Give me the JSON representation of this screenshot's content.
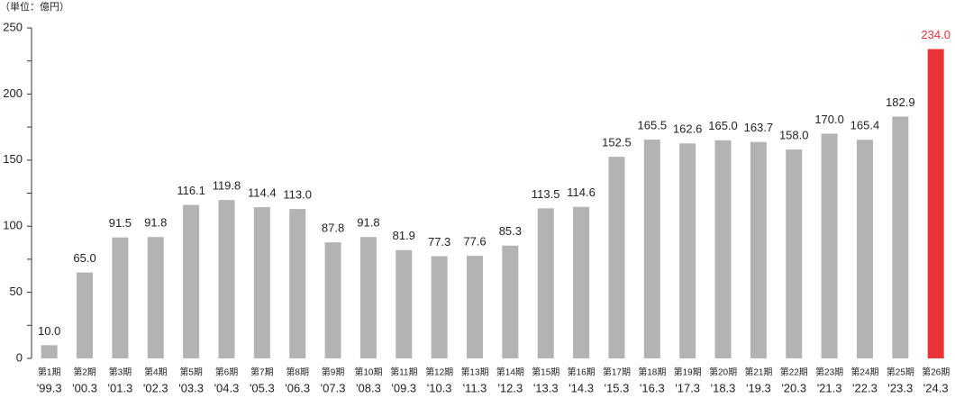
{
  "chart_data": {
    "type": "bar",
    "unit_label": "（単位：億円）",
    "categories": [
      [
        "第1期",
        "'99.3"
      ],
      [
        "第2期",
        "'00.3"
      ],
      [
        "第3期",
        "'01.3"
      ],
      [
        "第4期",
        "'02.3"
      ],
      [
        "第5期",
        "'03.3"
      ],
      [
        "第6期",
        "'04.3"
      ],
      [
        "第7期",
        "'05.3"
      ],
      [
        "第8期",
        "'06.3"
      ],
      [
        "第9期",
        "'07.3"
      ],
      [
        "第10期",
        "'08.3"
      ],
      [
        "第11期",
        "'09.3"
      ],
      [
        "第12期",
        "'10.3"
      ],
      [
        "第13期",
        "'11.3"
      ],
      [
        "第14期",
        "'12.3"
      ],
      [
        "第15期",
        "'13.3"
      ],
      [
        "第16期",
        "'14.3"
      ],
      [
        "第17期",
        "'15.3"
      ],
      [
        "第18期",
        "'16.3"
      ],
      [
        "第19期",
        "'17.3"
      ],
      [
        "第20期",
        "'18.3"
      ],
      [
        "第21期",
        "'19.3"
      ],
      [
        "第22期",
        "'20.3"
      ],
      [
        "第23期",
        "'21.3"
      ],
      [
        "第24期",
        "'22.3"
      ],
      [
        "第25期",
        "'23.3"
      ],
      [
        "第26期",
        "'24.3"
      ]
    ],
    "values": [
      10,
      65,
      91.5,
      91.8,
      116.1,
      119.8,
      114.4,
      113,
      87.8,
      91.8,
      81.9,
      77.3,
      77.6,
      85.3,
      113.5,
      114.6,
      152.5,
      165.5,
      162.6,
      165,
      163.7,
      158,
      170,
      165.4,
      182.9,
      234
    ],
    "value_labels": [
      "10.0",
      "65.0",
      "91.5",
      "91.8",
      "116.1",
      "119.8",
      "114.4",
      "113.0",
      "87.8",
      "91.8",
      "81.9",
      "77.3",
      "77.6",
      "85.3",
      "113.5",
      "114.6",
      "152.5",
      "165.5",
      "162.6",
      "165.0",
      "163.7",
      "158.0",
      "170.0",
      "165.4",
      "182.9",
      "234.0"
    ],
    "colors": [
      "#b3b3b3",
      "#b3b3b3",
      "#b3b3b3",
      "#b3b3b3",
      "#b3b3b3",
      "#b3b3b3",
      "#b3b3b3",
      "#b3b3b3",
      "#b3b3b3",
      "#b3b3b3",
      "#b3b3b3",
      "#b3b3b3",
      "#b3b3b3",
      "#b3b3b3",
      "#b3b3b3",
      "#b3b3b3",
      "#b3b3b3",
      "#b3b3b3",
      "#b3b3b3",
      "#b3b3b3",
      "#b3b3b3",
      "#b3b3b3",
      "#b3b3b3",
      "#b3b3b3",
      "#b3b3b3",
      "#ea3338"
    ],
    "ylim": [
      0,
      250
    ],
    "yticks": [
      0,
      50,
      100,
      150,
      200,
      250
    ],
    "yminor_ticks": [
      25,
      75,
      125,
      175,
      225
    ],
    "grid": false
  }
}
